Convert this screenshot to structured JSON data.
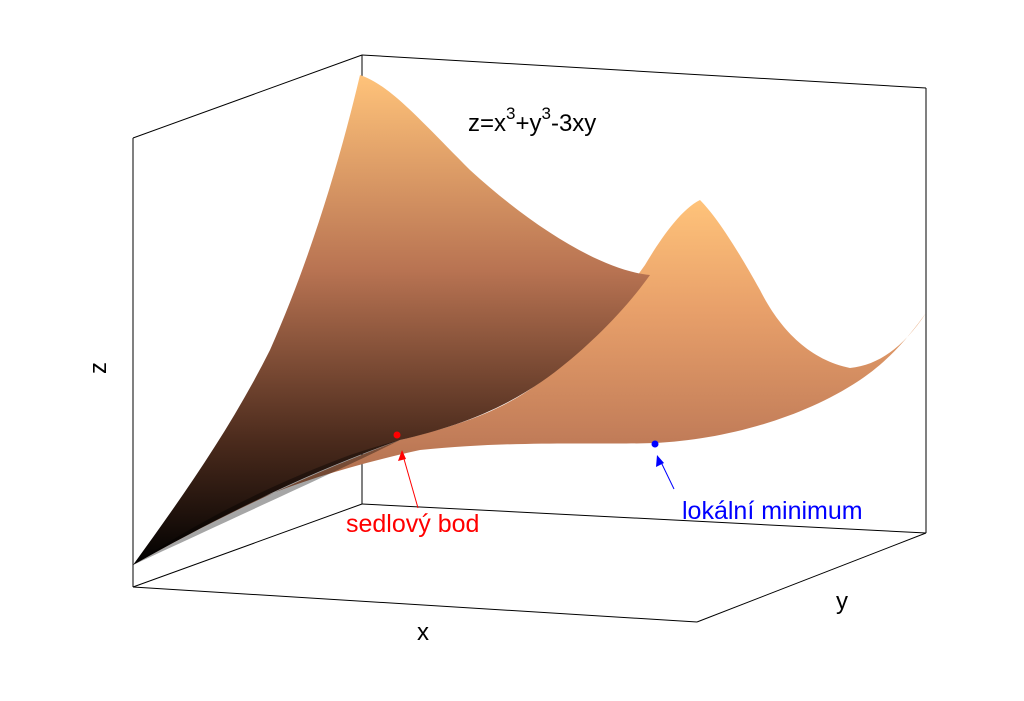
{
  "figure": {
    "title_base": "z=x",
    "title_exp1": "3",
    "title_mid": "+y",
    "title_exp2": "3",
    "title_tail": "-3xy",
    "axes": {
      "x_label": "x",
      "y_label": "y",
      "z_label": "z"
    },
    "annotations": {
      "saddle": {
        "text": "sedlový bod",
        "color": "#ff0000"
      },
      "minimum": {
        "text": "lokální minimum",
        "color": "#0000ff"
      }
    },
    "surface_colormap": [
      "#000000",
      "#7a4a34",
      "#d58a62",
      "#ffc37a"
    ],
    "box_color": "#000000"
  }
}
